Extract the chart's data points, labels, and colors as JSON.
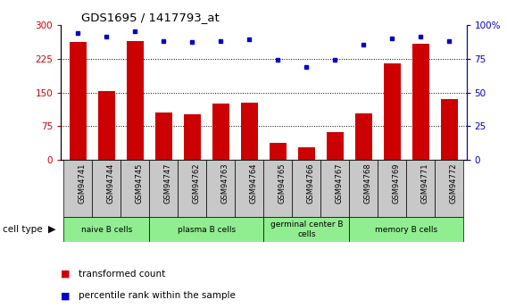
{
  "title": "GDS1695 / 1417793_at",
  "samples": [
    "GSM94741",
    "GSM94744",
    "GSM94745",
    "GSM94747",
    "GSM94762",
    "GSM94763",
    "GSM94764",
    "GSM94765",
    "GSM94766",
    "GSM94767",
    "GSM94768",
    "GSM94769",
    "GSM94771",
    "GSM94772"
  ],
  "transformed_count": [
    262,
    152,
    264,
    105,
    102,
    125,
    127,
    38,
    28,
    62,
    104,
    215,
    258,
    135
  ],
  "percentile_rank": [
    94,
    91,
    95,
    88,
    87,
    88,
    89,
    74,
    69,
    74,
    85,
    90,
    91,
    88
  ],
  "cell_type_groups": [
    {
      "label": "naive B cells",
      "start": 0,
      "end": 2
    },
    {
      "label": "plasma B cells",
      "start": 3,
      "end": 6
    },
    {
      "label": "germinal center B\ncells",
      "start": 7,
      "end": 9
    },
    {
      "label": "memory B cells",
      "start": 10,
      "end": 13
    }
  ],
  "bar_color": "#CC0000",
  "dot_color": "#0000CC",
  "cell_type_color": "#90EE90",
  "xtick_bg_color": "#C8C8C8",
  "ylim_left": [
    0,
    300
  ],
  "ylim_right": [
    0,
    100
  ],
  "yticks_left": [
    0,
    75,
    150,
    225,
    300
  ],
  "yticks_right": [
    0,
    25,
    50,
    75,
    100
  ],
  "ytick_labels_right": [
    "0",
    "25",
    "50",
    "75",
    "100%"
  ],
  "grid_values": [
    75,
    150,
    225
  ],
  "legend_bar_label": "transformed count",
  "legend_dot_label": "percentile rank within the sample",
  "cell_type_label": "cell type"
}
